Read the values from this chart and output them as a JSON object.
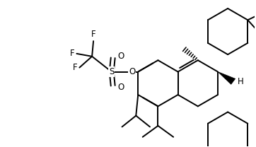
{
  "bg_color": "#ffffff",
  "line_color": "#000000",
  "lw": 1.4,
  "figsize": [
    3.62,
    2.08
  ],
  "dpi": 100,
  "xlim": [
    0,
    362
  ],
  "ylim": [
    0,
    208
  ]
}
